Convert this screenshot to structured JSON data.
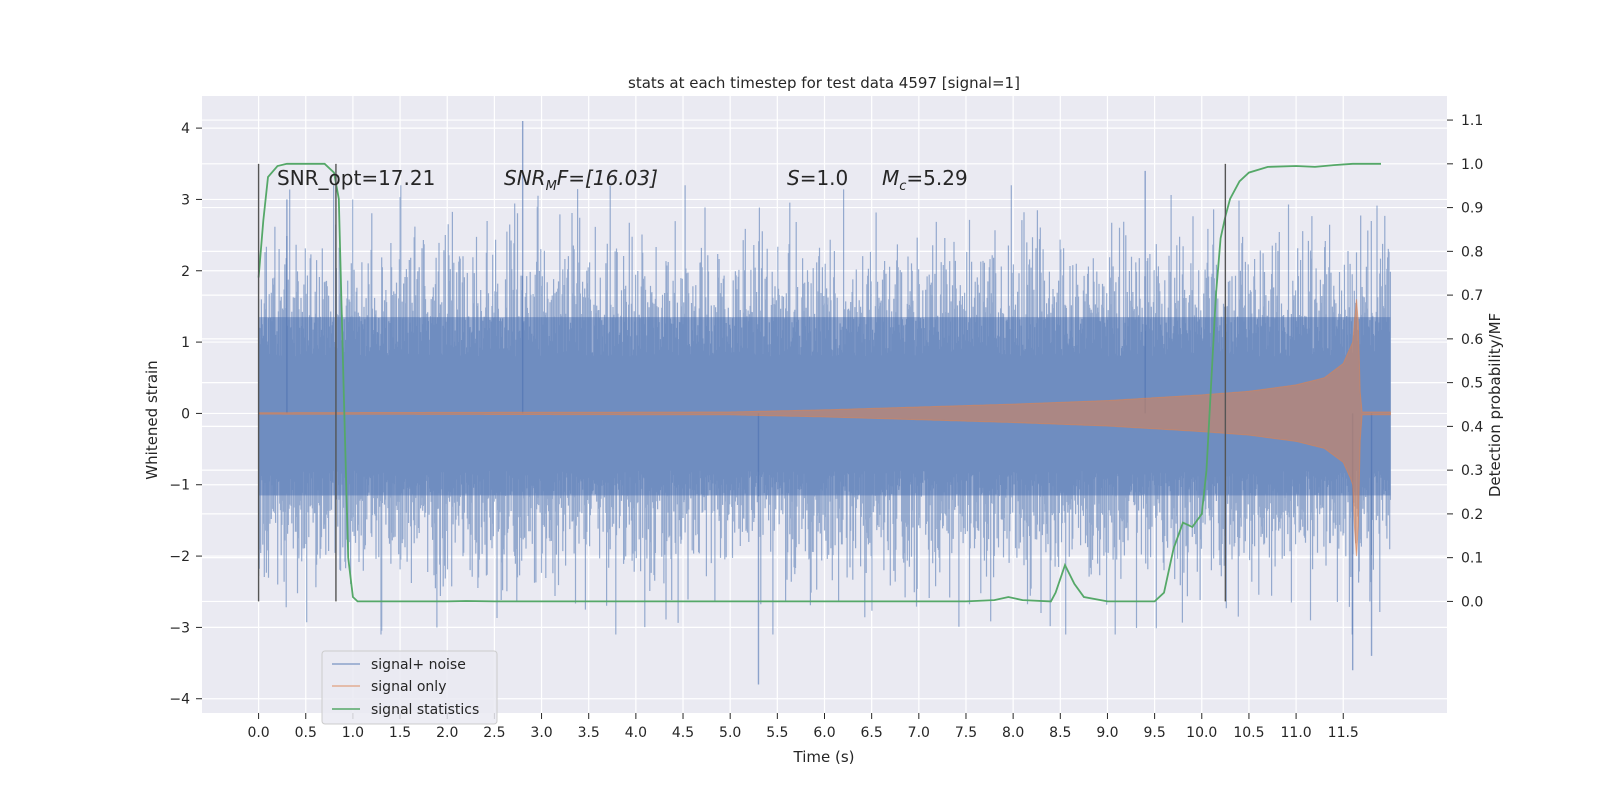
{
  "chart_data": {
    "type": "line",
    "title": "stats at each timestep for test data 4597 [signal=1]",
    "xlabel": "Time (s)",
    "ylabel": "Whitened strain",
    "ylabel_right": "Detection probability/MF",
    "xlim": [
      -0.6,
      12.6
    ],
    "ylim": [
      -4.2,
      4.45
    ],
    "ylim_right": [
      -0.255,
      1.155
    ],
    "x_ticks": [
      "0.0",
      "0.5",
      "1.0",
      "1.5",
      "2.0",
      "2.5",
      "3.0",
      "3.5",
      "4.0",
      "4.5",
      "5.0",
      "5.5",
      "6.0",
      "6.5",
      "7.0",
      "7.5",
      "8.0",
      "8.5",
      "9.0",
      "9.5",
      "10.0",
      "10.5",
      "11.0",
      "11.5"
    ],
    "y_ticks": [
      "4",
      "3",
      "2",
      "1",
      "0",
      "−1",
      "−2",
      "−3",
      "−4"
    ],
    "y_ticks_right": [
      "1.1",
      "1.0",
      "0.9",
      "0.8",
      "0.7",
      "0.6",
      "0.5",
      "0.4",
      "0.3",
      "0.2",
      "0.1",
      "0.0"
    ],
    "grid": true,
    "legend_position": "lower-left",
    "series": [
      {
        "name": "signal+ noise",
        "color": "#4c72b0",
        "axis": "left",
        "description_style": "dense noise band",
        "band_core": [
          -1.15,
          1.35
        ],
        "x_range": [
          0.0,
          12.0
        ],
        "peaks_x": [
          0.3,
          2.8,
          5.3,
          9.4,
          11.6,
          11.8
        ],
        "peaks_y": [
          3.0,
          4.1,
          -3.8,
          3.4,
          -3.6,
          -3.4
        ]
      },
      {
        "name": "signal only",
        "color": "#dd8452",
        "axis": "left",
        "x": [
          0.0,
          5.0,
          6.0,
          7.0,
          8.0,
          9.0,
          10.0,
          10.5,
          11.0,
          11.3,
          11.5,
          11.6,
          11.65,
          11.68,
          11.7,
          12.0
        ],
        "envelope": [
          0.01,
          0.02,
          0.05,
          0.09,
          0.13,
          0.18,
          0.26,
          0.31,
          0.4,
          0.5,
          0.7,
          1.0,
          1.75,
          0.3,
          0.02,
          0.02
        ]
      },
      {
        "name": "signal statistics",
        "color": "#55a868",
        "axis": "right",
        "x": [
          0.0,
          0.05,
          0.1,
          0.2,
          0.3,
          0.5,
          0.7,
          0.8,
          0.85,
          0.9,
          0.95,
          1.0,
          1.05,
          1.15,
          2.0,
          2.2,
          2.5,
          7.5,
          7.8,
          7.95,
          8.1,
          8.4,
          8.45,
          8.55,
          8.65,
          8.75,
          9.0,
          9.2,
          9.5,
          9.6,
          9.7,
          9.8,
          9.9,
          10.0,
          10.05,
          10.1,
          10.15,
          10.2,
          10.25,
          10.3,
          10.4,
          10.5,
          10.7,
          11.0,
          11.2,
          11.4,
          11.6,
          11.9
        ],
        "y": [
          0.74,
          0.87,
          0.97,
          0.995,
          1.0,
          1.0,
          1.0,
          0.98,
          0.92,
          0.5,
          0.1,
          0.01,
          0.0,
          0.0,
          0.0,
          0.001,
          0.0,
          0.0,
          0.003,
          0.01,
          0.003,
          0.0,
          0.02,
          0.083,
          0.04,
          0.01,
          0.0,
          0.0,
          0.0,
          0.02,
          0.12,
          0.18,
          0.17,
          0.2,
          0.3,
          0.5,
          0.7,
          0.83,
          0.88,
          0.92,
          0.96,
          0.98,
          0.993,
          0.995,
          0.993,
          0.997,
          1.0,
          1.0
        ]
      }
    ],
    "vertical_lines_x": [
      0.0,
      0.82,
      10.25
    ],
    "annotations": {
      "snr_opt": "SNR_opt=17.21",
      "snr_mf_sym": "SNR",
      "snr_mf_sub": "M",
      "snr_mf_rest": "F=[16.03]",
      "s_sym": "S",
      "s_rest": "=1.0",
      "mc_sym": "M",
      "mc_sub": "c",
      "mc_rest": "=5.29"
    }
  }
}
